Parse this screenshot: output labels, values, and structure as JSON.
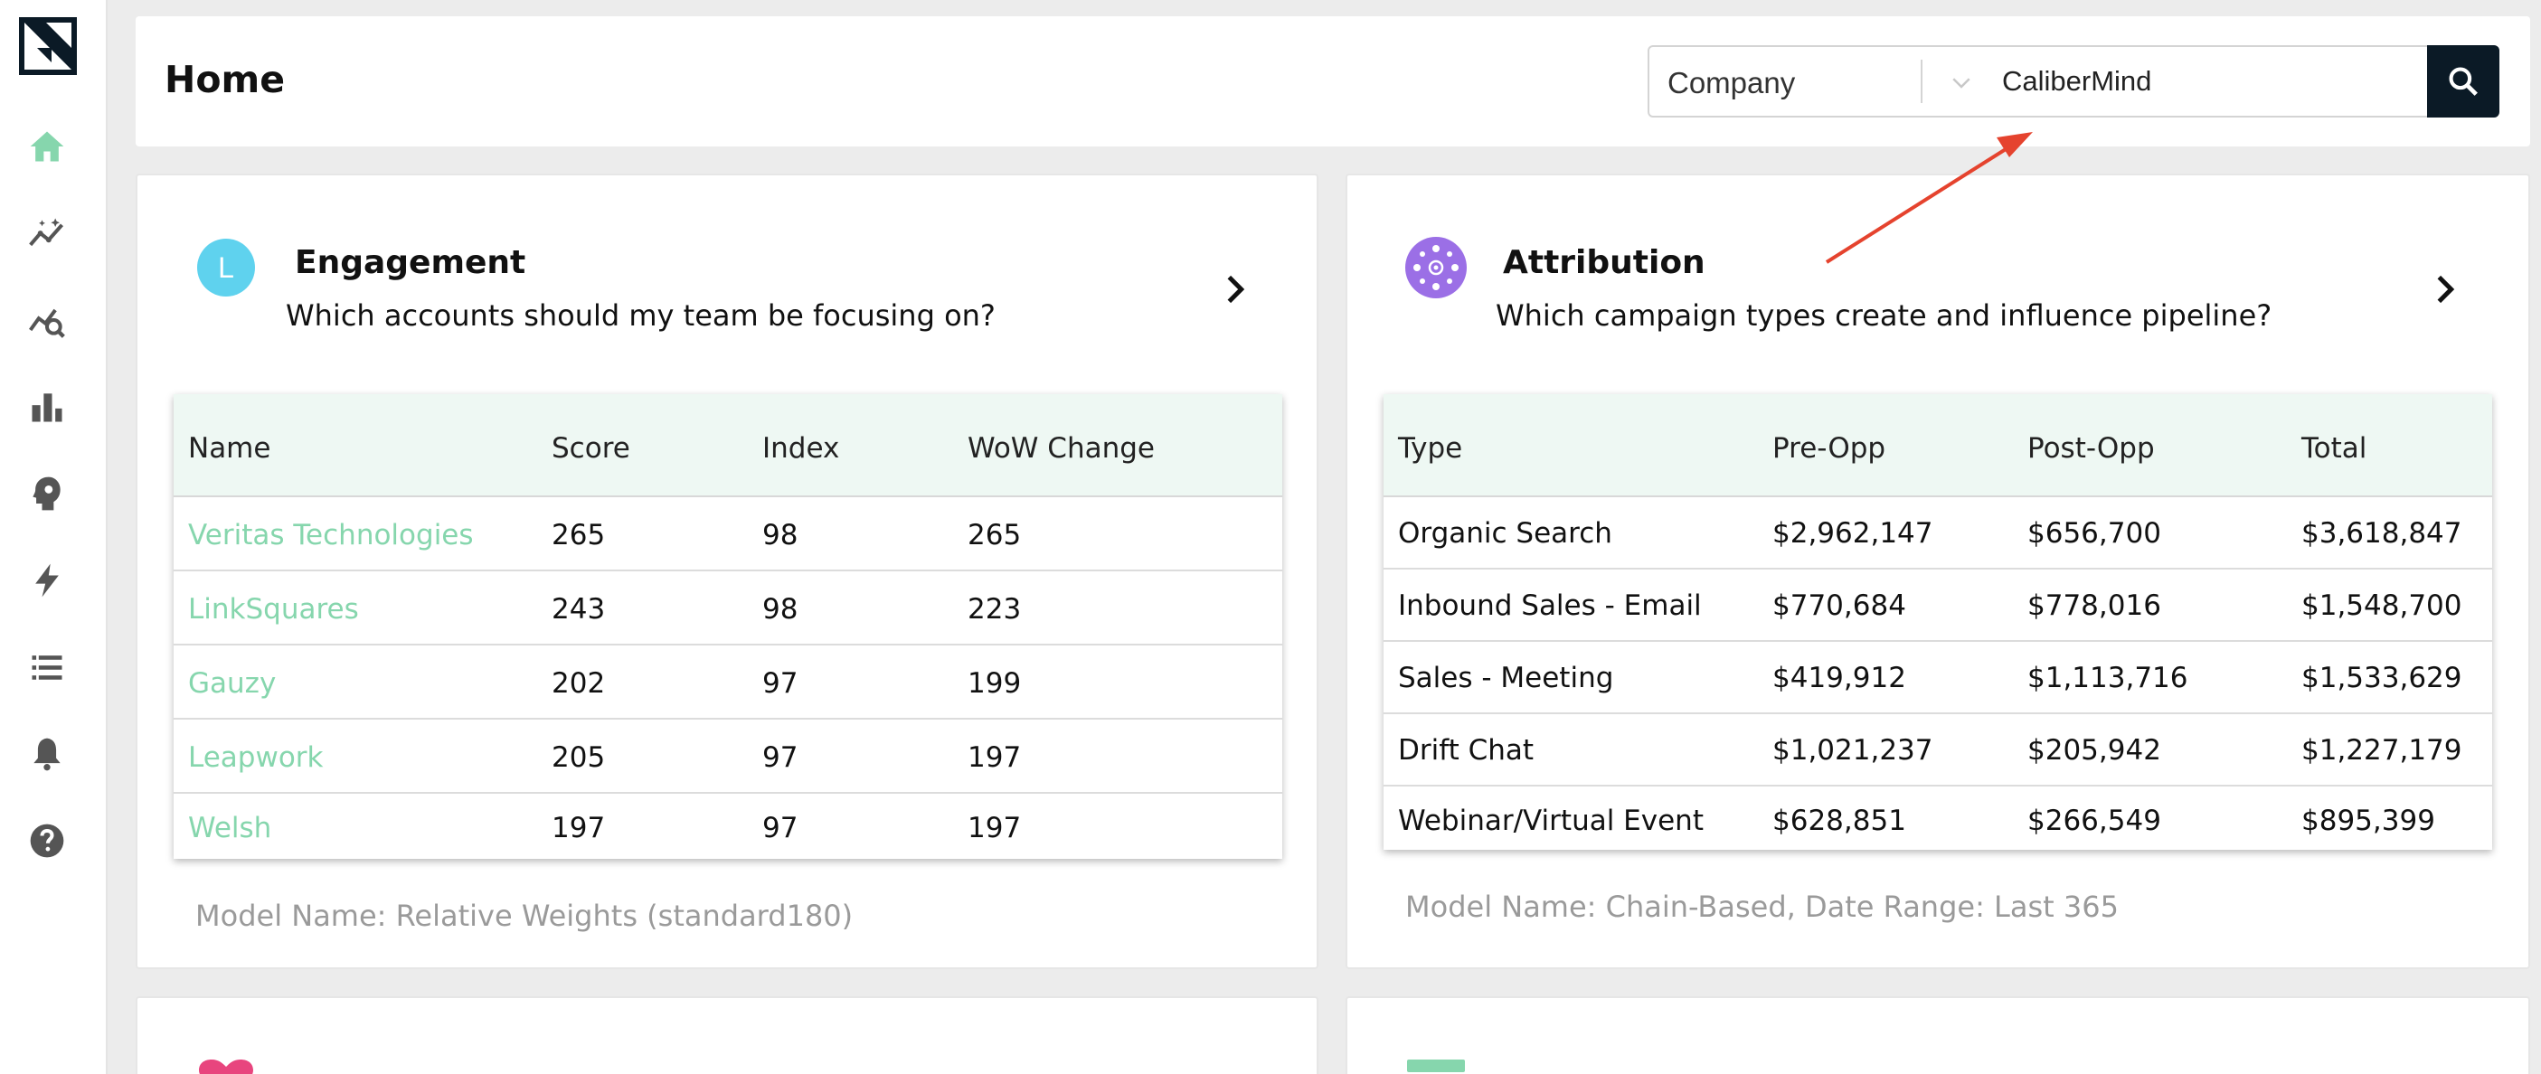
{
  "header": {
    "title": "Home",
    "search": {
      "filter_value": "Company",
      "query": "CaliberMind"
    }
  },
  "sidebar": {
    "items": [
      {
        "icon": "home-icon",
        "active": true
      },
      {
        "icon": "insights-icon"
      },
      {
        "icon": "analytics-search-icon"
      },
      {
        "icon": "bar-chart-icon"
      },
      {
        "icon": "brain-head-icon"
      },
      {
        "icon": "lightning-icon"
      },
      {
        "icon": "list-icon"
      },
      {
        "icon": "bell-icon"
      },
      {
        "icon": "help-icon"
      }
    ]
  },
  "engagement": {
    "icon_letter": "L",
    "title": "Engagement",
    "subtitle": "Which accounts should my team be focusing on?",
    "columns": [
      "Name",
      "Score",
      "Index",
      "WoW Change"
    ],
    "rows": [
      [
        "Veritas Technologies",
        "265",
        "98",
        "265"
      ],
      [
        "LinkSquares",
        "243",
        "98",
        "223"
      ],
      [
        "Gauzy",
        "202",
        "97",
        "199"
      ],
      [
        "Leapwork",
        "205",
        "97",
        "197"
      ],
      [
        "Welsh",
        "197",
        "97",
        "197"
      ]
    ],
    "footer": "Model Name: Relative Weights (standard180)"
  },
  "attribution": {
    "title": "Attribution",
    "subtitle": "Which campaign types create and influence pipeline?",
    "columns": [
      "Type",
      "Pre-Opp",
      "Post-Opp",
      "Total"
    ],
    "rows": [
      [
        "Organic Search",
        "$2,962,147",
        "$656,700",
        "$3,618,847"
      ],
      [
        "Inbound Sales - Email",
        "$770,684",
        "$778,016",
        "$1,548,700"
      ],
      [
        "Sales - Meeting",
        "$419,912",
        "$1,113,716",
        "$1,533,629"
      ],
      [
        "Drift Chat",
        "$1,021,237",
        "$205,942",
        "$1,227,179"
      ],
      [
        "Webinar/Virtual Event",
        "$628,851",
        "$266,549",
        "$895,399"
      ]
    ],
    "footer": "Model Name: Chain-Based, Date Range: Last 365"
  },
  "colors": {
    "accent_green": "#86d6ad",
    "header_row_bg": "#eef8f3",
    "search_button_bg": "#0b1a26",
    "engagement_icon": "#5fd2ee",
    "attribution_icon": "#9b6fe6",
    "data_health_icon": "#e8457e",
    "annotation_arrow": "#e5432e"
  }
}
